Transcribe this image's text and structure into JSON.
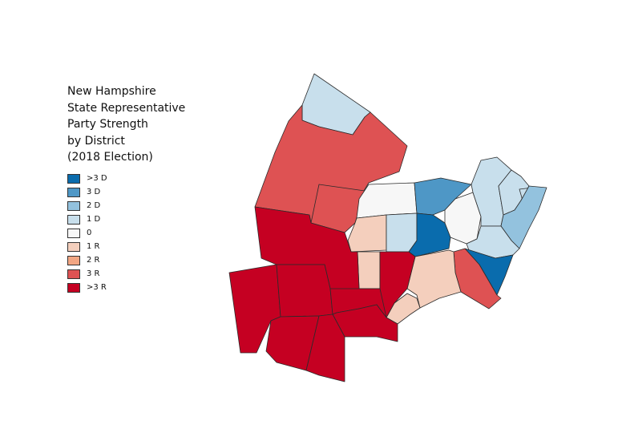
{
  "title_lines": [
    "New Hampshire",
    "State Representative",
    "Party Strength",
    "by District",
    "(2018 Election)"
  ],
  "legend": [
    {
      "label": ">3 D",
      "color": "#0a6cad"
    },
    {
      "label": "3 D",
      "color": "#4e97c6"
    },
    {
      "label": "2 D",
      "color": "#93c2de"
    },
    {
      "label": "1 D",
      "color": "#c8dfec"
    },
    {
      "label": "0",
      "color": "#f7f7f7"
    },
    {
      "label": "1 R",
      "color": "#f4cfbd"
    },
    {
      "label": "2 R",
      "color": "#f2a683"
    },
    {
      "label": "3 R",
      "color": "#de5253"
    },
    {
      "label": ">3 R",
      "color": "#c50022"
    }
  ],
  "districts": [
    {
      "id": "north-tip",
      "class": "1 D"
    },
    {
      "id": "northwest-large",
      "class": "3 R"
    },
    {
      "id": "central-west",
      "class": "3 R"
    },
    {
      "id": "central-north",
      "class": "0"
    },
    {
      "id": "central-upper-east",
      "class": "3 D"
    },
    {
      "id": "central-south-pale",
      "class": "1 R"
    },
    {
      "id": "central-south-blue",
      "class": "1 D"
    },
    {
      "id": "central-narrow",
      "class": "1 R"
    },
    {
      "id": "central-dark-blue",
      "class": "&gt;3 D"
    },
    {
      "id": "central-white-east",
      "class": "0"
    },
    {
      "id": "east-top",
      "class": "1 D"
    },
    {
      "id": "east-small-a",
      "class": "1 D"
    },
    {
      "id": "east-small-b",
      "class": "1 D"
    },
    {
      "id": "east-coast",
      "class": "2 D"
    },
    {
      "id": "east-lower",
      "class": "1 D"
    },
    {
      "id": "southeast-dark-blue",
      "class": "&gt;3 D"
    },
    {
      "id": "southeast-red",
      "class": "3 R"
    },
    {
      "id": "south-pale-a",
      "class": "1 R"
    },
    {
      "id": "south-pale-b",
      "class": "1 R"
    },
    {
      "id": "southwest-big",
      "class": "&gt;3 R"
    },
    {
      "id": "southwest-a",
      "class": "&gt;3 R"
    },
    {
      "id": "southwest-b",
      "class": "&gt;3 R"
    },
    {
      "id": "south-a",
      "class": "&gt;3 R"
    },
    {
      "id": "south-b",
      "class": "&gt;3 R"
    },
    {
      "id": "south-c",
      "class": "&gt;3 R"
    },
    {
      "id": "south-d",
      "class": "&gt;3 R"
    }
  ]
}
